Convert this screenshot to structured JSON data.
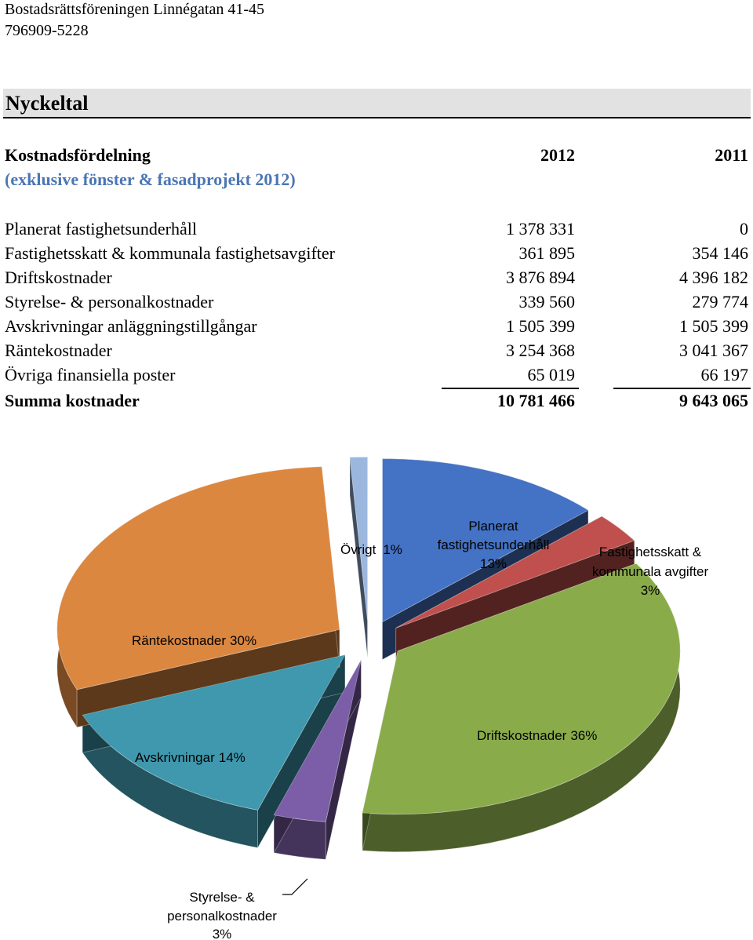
{
  "header": {
    "org_name": "Bostadsrättsföreningen Linnégatan 41-45",
    "org_number": "796909-5228"
  },
  "section": {
    "title": "Nyckeltal"
  },
  "table": {
    "title": "Kostnadsfördelning",
    "subtitle": "(exklusive fönster & fasadprojekt 2012)",
    "col_2012": "2012",
    "col_2011": "2011",
    "rows": [
      {
        "label": "Planerat fastighetsunderhåll",
        "v2012": "1 378 331",
        "v2011": "0"
      },
      {
        "label": "Fastighetsskatt & kommunala fastighetsavgifter",
        "v2012": "361 895",
        "v2011": "354 146"
      },
      {
        "label": "Driftskostnader",
        "v2012": "3 876 894",
        "v2011": "4 396 182"
      },
      {
        "label": "Styrelse- & personalkostnader",
        "v2012": "339 560",
        "v2011": "279 774"
      },
      {
        "label": "Avskrivningar anläggningstillgångar",
        "v2012": "1 505 399",
        "v2011": "1 505 399"
      },
      {
        "label": "Räntekostnader",
        "v2012": "3 254 368",
        "v2011": "3 041 367"
      },
      {
        "label": "Övriga finansiella poster",
        "v2012": "65 019",
        "v2011": "66 197"
      }
    ],
    "total": {
      "label": "Summa kostnader",
      "v2012": "10 781 466",
      "v2011": "9 643 065"
    }
  },
  "chart_data": {
    "type": "pie",
    "title": "",
    "slices": [
      {
        "label": "Planerat fastighetsunderhåll",
        "percent": 13,
        "label_text": "13%",
        "color": "#4472c4"
      },
      {
        "label": "Fastighetsskatt & kommunala avgifter",
        "percent": 3,
        "label_text": "3%",
        "color": "#c0504d"
      },
      {
        "label": "Driftskostnader",
        "percent": 36,
        "label_text": "36%",
        "color": "#8aab4a"
      },
      {
        "label": "Styrelse- & personalkostnader",
        "percent": 3,
        "label_text": "3%",
        "color": "#7b5ea7"
      },
      {
        "label": "Avskrivningar",
        "percent": 14,
        "label_text": "14%",
        "color": "#3f98ad"
      },
      {
        "label": "Räntekostnader",
        "percent": 30,
        "label_text": "30%",
        "color": "#dc8740"
      },
      {
        "label": "Övrigt",
        "percent": 1,
        "label_text": "1%",
        "color": "#9bb7de"
      }
    ],
    "labels_display": {
      "planned_line1": "Planerat",
      "planned_line2": "fastighetsunderhåll",
      "tax_line1": "Fastighetsskatt &",
      "tax_line2": "kommunala avgifter",
      "board_line1": "Styrelse- &",
      "board_line2": "personalkostnader"
    }
  }
}
